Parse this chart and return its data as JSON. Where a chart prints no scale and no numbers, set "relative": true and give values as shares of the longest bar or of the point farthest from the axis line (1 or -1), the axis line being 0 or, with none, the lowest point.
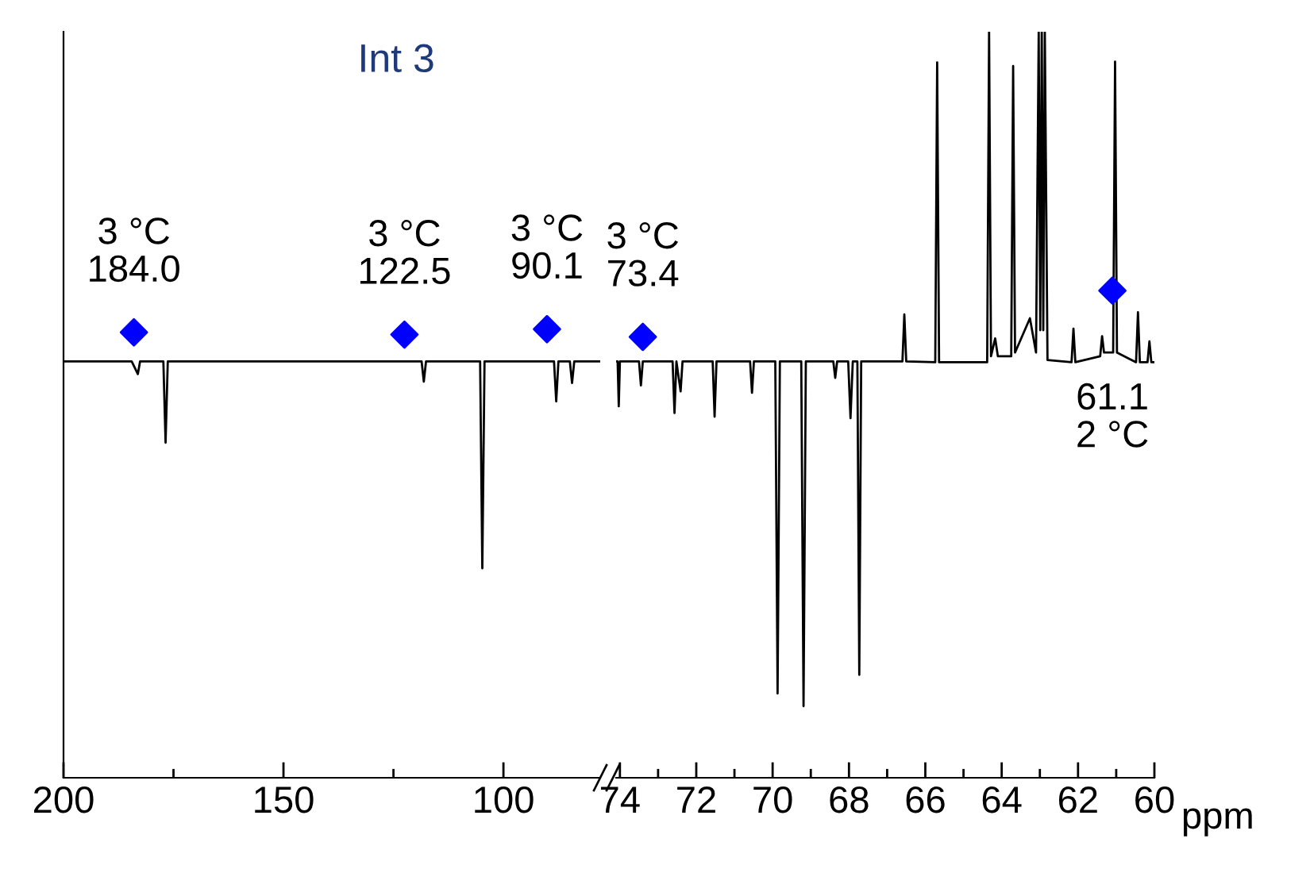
{
  "chart_data": [
    {
      "type": "line",
      "relative": true,
      "title": "Int 3",
      "xlim": [
        200,
        78
      ],
      "xticks": [
        200,
        {
          "value": 175,
          "label": null
        },
        150,
        {
          "value": 125,
          "label": null
        },
        100
      ],
      "tick_labels": "x",
      "series": [
        {
          "color": "#000000",
          "x": [
            200,
            184.5,
            183.1,
            182.6,
            177.3,
            176.8,
            176.3,
            118.6,
            118.1,
            117.6,
            105.3,
            104.8,
            104.3,
            88.5,
            88.0,
            87.5,
            84.9,
            84.4,
            83.9,
            78
          ],
          "values": [
            0.928,
            0.928,
            0.9,
            0.928,
            0.928,
            0.747,
            0.928,
            0.928,
            0.883,
            0.928,
            0.928,
            0.467,
            0.928,
            0.928,
            0.839,
            0.928,
            0.928,
            0.88,
            0.928,
            0.928
          ]
        },
        {
          "type": "scatter",
          "color": "#0000ff",
          "marker": "diamond",
          "x": [
            184.0,
            122.5,
            90.1
          ],
          "values": [
            0.993,
            0.988,
            1.0
          ]
        }
      ],
      "annotations": [
        {
          "text": "3 °C\n184.0",
          "x": 184.0,
          "y": 0.993
        },
        {
          "text": "3 °C\n122.5",
          "x": 122.5,
          "y": 0.988
        },
        {
          "text": "3 °C\n90.1",
          "x": 90.1,
          "y": 1.0
        }
      ]
    },
    {
      "type": "line",
      "relative": true,
      "xlabel": "ppm",
      "xlim": [
        74.1,
        60
      ],
      "xticks": [
        74,
        {
          "value": 73,
          "label": null
        },
        72,
        {
          "value": 71,
          "label": null
        },
        70,
        {
          "value": 69,
          "label": null
        },
        68,
        {
          "value": 67,
          "label": null
        },
        66,
        {
          "value": 65,
          "label": null
        },
        64,
        {
          "value": 63,
          "label": null
        },
        62,
        {
          "value": 61,
          "label": null
        },
        60
      ],
      "tick_labels": "x",
      "series": [
        {
          "color": "#000000",
          "x": [
            74.1,
            74.06,
            74.03,
            74.0,
            73.5,
            73.45,
            73.4,
            72.62,
            72.57,
            72.52,
            72.41,
            72.36,
            71.57,
            71.52,
            71.47,
            70.59,
            70.54,
            70.49,
            69.93,
            69.87,
            69.81,
            69.25,
            69.19,
            69.13,
            68.41,
            68.36,
            68.31,
            68.02,
            67.96,
            67.9,
            67.78,
            67.73,
            67.68,
            66.6,
            66.55,
            66.5,
            65.74,
            65.69,
            65.64,
            64.38,
            64.33,
            64.28,
            64.17,
            64.1,
            63.75,
            63.7,
            63.65,
            63.26,
            63.1,
            63.03,
            62.99,
            62.95,
            62.91,
            62.87,
            62.8,
            62.17,
            62.12,
            62.07,
            61.42,
            61.37,
            61.32,
            61.08,
            61.03,
            60.98,
            60.48,
            60.43,
            60.38,
            60.18,
            60.13,
            60.08,
            60
          ],
          "values": [
            0.558,
            0.558,
            0.498,
            0.558,
            0.558,
            0.526,
            0.558,
            0.558,
            0.489,
            0.558,
            0.518,
            0.558,
            0.558,
            0.484,
            0.558,
            0.558,
            0.516,
            0.558,
            0.558,
            0.113,
            0.558,
            0.558,
            0.096,
            0.558,
            0.558,
            0.536,
            0.558,
            0.558,
            0.482,
            0.558,
            0.558,
            0.138,
            0.558,
            0.558,
            0.621,
            0.558,
            0.557,
            0.959,
            0.557,
            0.557,
            1.0,
            0.565,
            0.589,
            0.565,
            0.565,
            0.954,
            0.57,
            0.616,
            0.57,
            1.0,
            0.6,
            1.0,
            0.6,
            1.0,
            0.56,
            0.557,
            0.602,
            0.557,
            0.565,
            0.592,
            0.57,
            0.57,
            0.96,
            0.57,
            0.557,
            0.624,
            0.557,
            0.557,
            0.585,
            0.557,
            0.557
          ]
        },
        {
          "type": "scatter",
          "color": "#0000ff",
          "marker": "diamond",
          "x": [
            73.4,
            61.1
          ],
          "values": [
            0.591,
            0.653
          ]
        }
      ],
      "annotations": [
        {
          "text": "3 °C\n73.4",
          "x": 73.4,
          "y": 0.591
        },
        {
          "text": "61.1\n2 °C",
          "x": 61.1,
          "y": 0.653
        }
      ]
    }
  ]
}
